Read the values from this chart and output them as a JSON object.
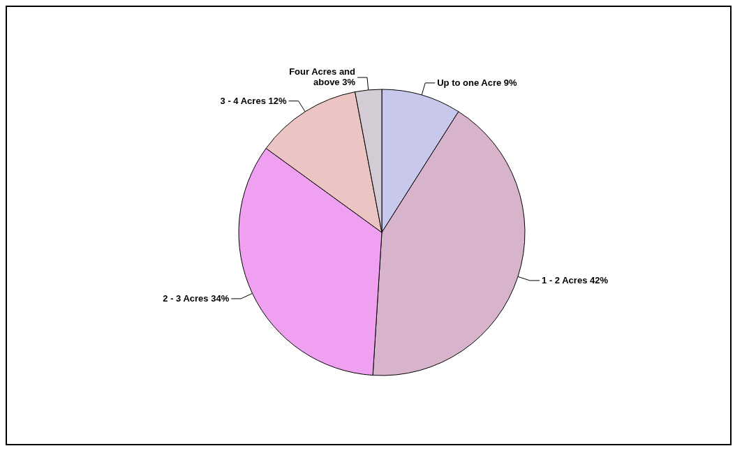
{
  "chart_data": {
    "type": "pie",
    "categories": [
      "Up to one Acre",
      "1 - 2 Acres",
      "2 - 3 Acres",
      "3 - 4 Acres",
      "Four Acres and above"
    ],
    "values": [
      9,
      42,
      34,
      12,
      3
    ],
    "value_labels": [
      "9%",
      "42%",
      "34%",
      "12%",
      "3%"
    ],
    "colors": [
      "#c8c8ec",
      "#d8b4cc",
      "#f0a0f0",
      "#ecc4c4",
      "#d4ccd4"
    ],
    "legend": false
  }
}
